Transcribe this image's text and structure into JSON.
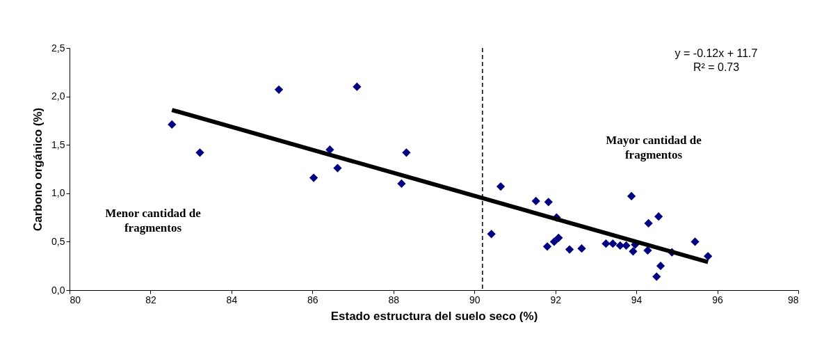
{
  "chart_data": {
    "type": "scatter",
    "xlabel": "Estado estructura del suelo seco (%)",
    "ylabel": "Carbono orgánico (%)",
    "xlim": [
      80,
      98
    ],
    "xticks": [
      80,
      82,
      84,
      86,
      88,
      90,
      92,
      94,
      96,
      98
    ],
    "ylim": [
      0,
      2.5
    ],
    "yticks": [
      {
        "value": 0,
        "label": "0,0"
      },
      {
        "value": 0.5,
        "label": "0,5"
      },
      {
        "value": 1,
        "label": "1,0"
      },
      {
        "value": 1.5,
        "label": "1,5"
      },
      {
        "value": 2,
        "label": "2,0"
      },
      {
        "value": 2.5,
        "label": "2,5"
      }
    ],
    "grid": false,
    "marker": "diamond",
    "series": [
      {
        "color": "#000080",
        "x": [
          82.53,
          83.22,
          85.17,
          86.03,
          86.43,
          86.62,
          87.1,
          88.2,
          88.32,
          90.42,
          90.65,
          91.52,
          91.8,
          91.83,
          91.97,
          92.03,
          92.08,
          92.35,
          92.65,
          93.25,
          93.42,
          93.6,
          93.75,
          93.88,
          93.92,
          93.97,
          94.28,
          94.3,
          94.5,
          94.55,
          94.6,
          94.88,
          95.45,
          95.77
        ],
        "values": [
          1.71,
          1.42,
          2.07,
          1.16,
          1.45,
          1.26,
          2.1,
          1.1,
          1.42,
          0.58,
          1.07,
          0.92,
          0.45,
          0.91,
          0.5,
          0.75,
          0.54,
          0.42,
          0.43,
          0.48,
          0.48,
          0.46,
          0.46,
          0.97,
          0.4,
          0.47,
          0.41,
          0.69,
          0.14,
          0.76,
          0.25,
          0.39,
          0.5,
          0.35
        ]
      },
      {
        "type": "line",
        "color": "#000000",
        "line_style": "solid",
        "marker": "none",
        "x": [
          82.53,
          95.77
        ],
        "values": [
          1.86,
          0.29
        ]
      }
    ],
    "ref_lines": [
      {
        "axis": "x",
        "value": 90.2,
        "color": "#000000",
        "line_style": "dashed"
      }
    ],
    "annotations": [
      "y = -0.12x + 11.7\nR² = 0.73",
      "Menor cantidad de\nfragmentos",
      "Mayor cantidad de\nfragmentos"
    ]
  }
}
